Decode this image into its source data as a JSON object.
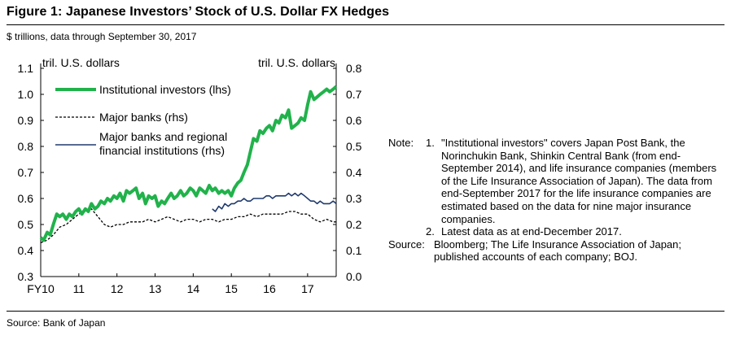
{
  "figure": {
    "title": "Figure 1: Japanese Investors’ Stock of U.S. Dollar FX Hedges",
    "subtitle": "$ trillions, data through September 30, 2017",
    "source": "Source: Bank of Japan"
  },
  "notes": {
    "label": "Note:",
    "items": [
      {
        "num": "1.",
        "text": "\"Institutional investors\" covers Japan Post Bank, the Norinchukin Bank, Shinkin Central Bank (from end-September 2014), and life insurance companies (members of the Life Insurance Association of Japan). The data from end-September 2017 for the life insurance companies are estimated based on the data for nine major insurance companies."
      },
      {
        "num": "2.",
        "text": "Latest data as at end-December 2017."
      }
    ],
    "source_label": "Source:",
    "source_text": "Bloomberg; The Life Insurance Association of Japan; published accounts of each company; BOJ."
  },
  "colors": {
    "institutional": "#21b24b",
    "major_banks": "#000000",
    "regional": "#1f3a6e"
  },
  "chart_data": {
    "type": "line",
    "left_axis": {
      "label": "tril. U.S. dollars",
      "range": [
        0.3,
        1.1
      ],
      "ticks": [
        "0.3",
        "0.4",
        "0.5",
        "0.6",
        "0.7",
        "0.8",
        "0.9",
        "1.0",
        "1.1"
      ]
    },
    "right_axis": {
      "label": "tril. U.S. dollars",
      "range": [
        0.0,
        0.8
      ],
      "ticks": [
        "0.0",
        "0.1",
        "0.2",
        "0.3",
        "0.4",
        "0.5",
        "0.6",
        "0.7",
        "0.8"
      ]
    },
    "x_axis": {
      "range": [
        2010,
        2017.75
      ],
      "ticks": [
        {
          "v": 2010,
          "label": "FY10"
        },
        {
          "v": 2011,
          "label": "11"
        },
        {
          "v": 2012,
          "label": "12"
        },
        {
          "v": 2013,
          "label": "13"
        },
        {
          "v": 2014,
          "label": "14"
        },
        {
          "v": 2015,
          "label": "15"
        },
        {
          "v": 2016,
          "label": "16"
        },
        {
          "v": 2017,
          "label": "17"
        }
      ]
    },
    "series": [
      {
        "name": "Institutional investors (lhs)",
        "axis": "left",
        "style": "solid-thick",
        "x": [
          2010.0,
          2010.08,
          2010.17,
          2010.25,
          2010.33,
          2010.42,
          2010.5,
          2010.58,
          2010.67,
          2010.75,
          2010.83,
          2010.92,
          2011.0,
          2011.08,
          2011.17,
          2011.25,
          2011.33,
          2011.42,
          2011.5,
          2011.58,
          2011.67,
          2011.75,
          2011.83,
          2011.92,
          2012.0,
          2012.08,
          2012.17,
          2012.25,
          2012.33,
          2012.42,
          2012.5,
          2012.58,
          2012.67,
          2012.75,
          2012.83,
          2012.92,
          2013.0,
          2013.08,
          2013.17,
          2013.25,
          2013.33,
          2013.42,
          2013.5,
          2013.58,
          2013.67,
          2013.75,
          2013.83,
          2013.92,
          2014.0,
          2014.08,
          2014.17,
          2014.25,
          2014.33,
          2014.42,
          2014.5,
          2014.58,
          2014.67,
          2014.75,
          2014.83,
          2014.92,
          2015.0,
          2015.08,
          2015.17,
          2015.25,
          2015.33,
          2015.42,
          2015.5,
          2015.58,
          2015.67,
          2015.75,
          2015.83,
          2015.92,
          2016.0,
          2016.08,
          2016.17,
          2016.25,
          2016.33,
          2016.42,
          2016.5,
          2016.58,
          2016.67,
          2016.75,
          2016.83,
          2016.92,
          2017.0,
          2017.08,
          2017.17,
          2017.25,
          2017.33,
          2017.42,
          2017.5,
          2017.58,
          2017.67,
          2017.75
        ],
        "values": [
          0.45,
          0.44,
          0.47,
          0.46,
          0.5,
          0.54,
          0.53,
          0.54,
          0.52,
          0.54,
          0.53,
          0.55,
          0.56,
          0.54,
          0.56,
          0.55,
          0.58,
          0.56,
          0.57,
          0.59,
          0.58,
          0.6,
          0.59,
          0.61,
          0.6,
          0.62,
          0.59,
          0.63,
          0.62,
          0.63,
          0.64,
          0.6,
          0.62,
          0.58,
          0.61,
          0.6,
          0.61,
          0.57,
          0.59,
          0.58,
          0.6,
          0.62,
          0.6,
          0.61,
          0.63,
          0.61,
          0.62,
          0.64,
          0.63,
          0.61,
          0.64,
          0.63,
          0.62,
          0.65,
          0.63,
          0.64,
          0.62,
          0.63,
          0.62,
          0.63,
          0.61,
          0.64,
          0.66,
          0.67,
          0.7,
          0.73,
          0.78,
          0.83,
          0.82,
          0.86,
          0.85,
          0.87,
          0.88,
          0.86,
          0.9,
          0.89,
          0.92,
          0.91,
          0.94,
          0.87,
          0.88,
          0.89,
          0.91,
          0.9,
          0.96,
          1.01,
          0.98,
          0.99,
          1.0,
          1.01,
          1.02,
          1.01,
          1.02,
          1.03
        ]
      },
      {
        "name": "Major banks (rhs)",
        "axis": "right",
        "style": "dashed",
        "x": [
          2010.0,
          2010.17,
          2010.33,
          2010.5,
          2010.67,
          2010.83,
          2011.0,
          2011.17,
          2011.33,
          2011.5,
          2011.67,
          2011.83,
          2012.0,
          2012.17,
          2012.33,
          2012.5,
          2012.67,
          2012.83,
          2013.0,
          2013.17,
          2013.33,
          2013.5,
          2013.67,
          2013.83,
          2014.0,
          2014.17,
          2014.33,
          2014.5,
          2014.67,
          2014.83,
          2015.0,
          2015.17,
          2015.33,
          2015.5,
          2015.67,
          2015.83,
          2016.0,
          2016.17,
          2016.33,
          2016.5,
          2016.67,
          2016.83,
          2017.0,
          2017.17,
          2017.33,
          2017.5,
          2017.67,
          2017.75
        ],
        "values": [
          0.13,
          0.14,
          0.16,
          0.19,
          0.2,
          0.22,
          0.24,
          0.25,
          0.26,
          0.23,
          0.2,
          0.19,
          0.2,
          0.2,
          0.21,
          0.21,
          0.21,
          0.22,
          0.21,
          0.22,
          0.23,
          0.22,
          0.21,
          0.22,
          0.22,
          0.21,
          0.22,
          0.22,
          0.21,
          0.22,
          0.22,
          0.23,
          0.23,
          0.24,
          0.23,
          0.24,
          0.24,
          0.24,
          0.24,
          0.25,
          0.25,
          0.24,
          0.24,
          0.22,
          0.21,
          0.22,
          0.21,
          0.21
        ]
      },
      {
        "name": "Major banks and regional financial institutions (rhs)",
        "axis": "right",
        "style": "solid",
        "x": [
          2014.5,
          2014.58,
          2014.67,
          2014.75,
          2014.83,
          2014.92,
          2015.0,
          2015.08,
          2015.17,
          2015.25,
          2015.33,
          2015.42,
          2015.5,
          2015.58,
          2015.67,
          2015.75,
          2015.83,
          2015.92,
          2016.0,
          2016.08,
          2016.17,
          2016.25,
          2016.33,
          2016.42,
          2016.5,
          2016.58,
          2016.67,
          2016.75,
          2016.83,
          2016.92,
          2017.0,
          2017.08,
          2017.17,
          2017.25,
          2017.33,
          2017.42,
          2017.5,
          2017.58,
          2017.67,
          2017.75
        ],
        "values": [
          0.26,
          0.25,
          0.27,
          0.26,
          0.28,
          0.27,
          0.28,
          0.28,
          0.29,
          0.29,
          0.3,
          0.29,
          0.29,
          0.3,
          0.3,
          0.3,
          0.3,
          0.31,
          0.31,
          0.3,
          0.31,
          0.31,
          0.31,
          0.31,
          0.32,
          0.31,
          0.32,
          0.31,
          0.32,
          0.31,
          0.3,
          0.29,
          0.29,
          0.28,
          0.29,
          0.28,
          0.28,
          0.28,
          0.29,
          0.28
        ]
      }
    ],
    "legend": [
      {
        "text": "Institutional investors (lhs)"
      },
      {
        "text": "Major banks (rhs)"
      },
      {
        "text": "Major banks and regional financial institutions (rhs)",
        "line1": "Major banks and regional",
        "line2": "financial institutions (rhs)"
      }
    ]
  }
}
